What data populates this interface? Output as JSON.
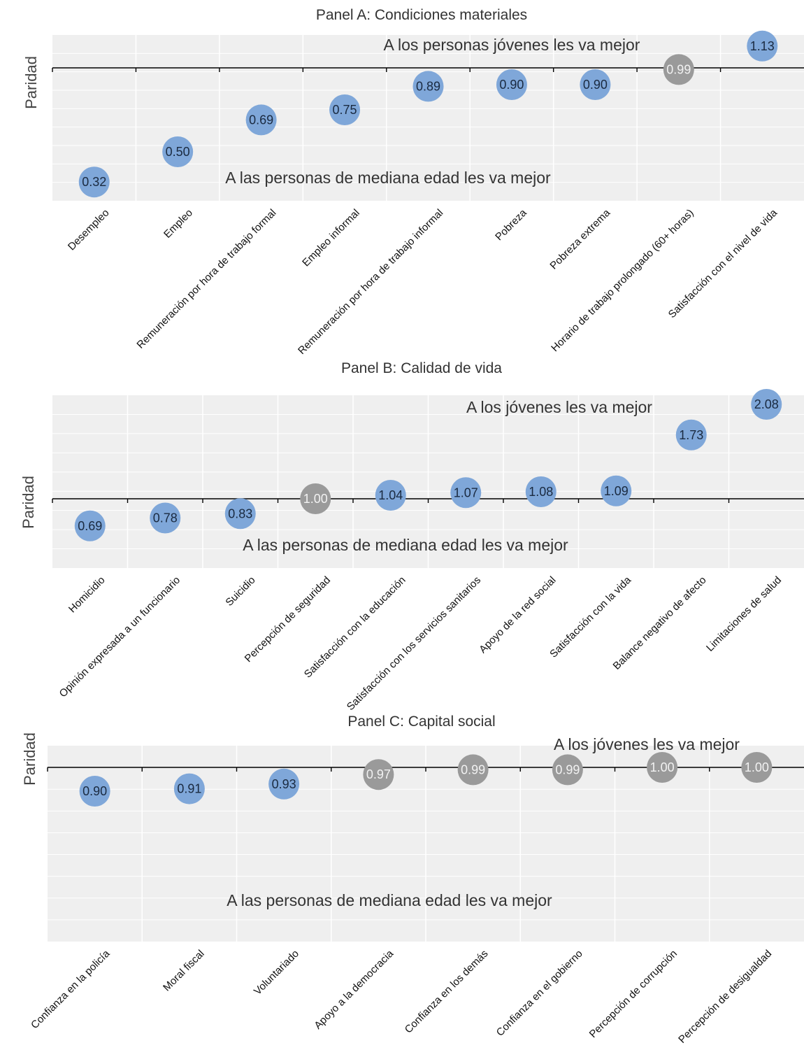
{
  "colors": {
    "significant": "#7fa7d9",
    "not_significant": "#9a9a9a",
    "plot_background": "#efefef",
    "grid": "#ffffff",
    "parity_line": "#000000",
    "significant_text": "#1a2a40",
    "not_significant_text": "#f2f2f2"
  },
  "chart_data": [
    {
      "type": "scatter",
      "title": "Panel A: Condiciones materiales",
      "ylabel": "Paridad",
      "reference_line": 1.0,
      "annotation_above": "A los personas jóvenes les va mejor",
      "annotation_below": "A las personas de mediana edad les va mejor",
      "categories": [
        "Desempleo",
        "Empleo",
        "Remuneración por hora de trabajo formal",
        "Empleo informal",
        "Remuneración por hora de trabajo informal",
        "Pobreza",
        "Pobreza extrema",
        "Horario de trabajo prolongado (60+ horas)",
        "Satisfacción con el nivel de vida"
      ],
      "values": [
        0.32,
        0.5,
        0.69,
        0.75,
        0.89,
        0.9,
        0.9,
        0.99,
        1.13
      ],
      "value_labels": [
        "0.32",
        "0.50",
        "0.69",
        "0.75",
        "0.89",
        "0.90",
        "0.90",
        "0.99",
        "1.13"
      ],
      "significant": [
        true,
        true,
        true,
        true,
        true,
        true,
        true,
        false,
        true
      ]
    },
    {
      "type": "scatter",
      "title": "Panel B: Calidad de vida",
      "ylabel": "Paridad",
      "reference_line": 1.0,
      "annotation_above": "A los jóvenes les va mejor",
      "annotation_below": "A las personas de mediana edad les va mejor",
      "categories": [
        "Homicidio",
        "Opinión expresada a un funcionario",
        "Suicidio",
        "Percepción de seguridad",
        "Satisfacción con la educación",
        "Satisfacción con los servicios sanitarios",
        "Apoyo de la red social",
        "Satisfacción con la vida",
        "Balance negativo de afecto",
        "Limitaciones de salud"
      ],
      "values": [
        0.69,
        0.78,
        0.83,
        1.0,
        1.04,
        1.07,
        1.08,
        1.09,
        1.73,
        2.08
      ],
      "value_labels": [
        "0.69",
        "0.78",
        "0.83",
        "1.00",
        "1.04",
        "1.07",
        "1.08",
        "1.09",
        "1.73",
        "2.08"
      ],
      "significant": [
        true,
        true,
        true,
        false,
        true,
        true,
        true,
        true,
        true,
        true
      ]
    },
    {
      "type": "scatter",
      "title": "Panel C: Capital social",
      "ylabel": "Paridad",
      "reference_line": 1.0,
      "annotation_above": "A los jóvenes les va mejor",
      "annotation_below": "A las personas de mediana edad les va mejor",
      "categories": [
        "Confianza en la policía",
        "Moral fiscal",
        "Voluntariado",
        "Apoyo a la democracia",
        "Confianza en los demás",
        "Confianza en el gobierno",
        "Percepción de corrupción",
        "Percepción de desigualdad"
      ],
      "values": [
        0.9,
        0.91,
        0.93,
        0.97,
        0.99,
        0.99,
        1.0,
        1.0
      ],
      "value_labels": [
        "0.90",
        "0.91",
        "0.93",
        "0.97",
        "0.99",
        "0.99",
        "1.00",
        "1.00"
      ],
      "significant": [
        true,
        true,
        true,
        false,
        false,
        false,
        false,
        false
      ]
    }
  ]
}
